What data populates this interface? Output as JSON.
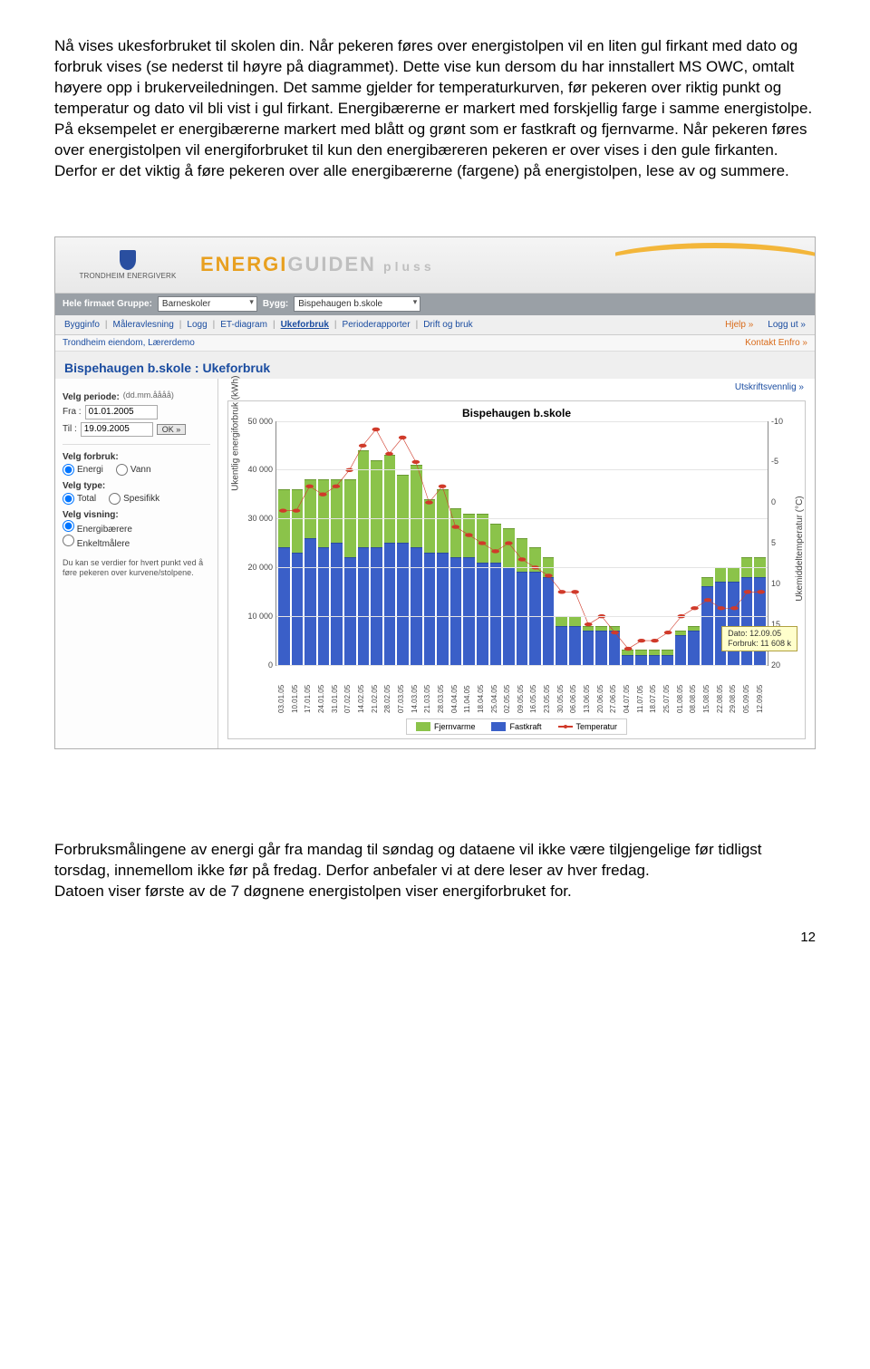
{
  "doc": {
    "para1": "Nå vises ukesforbruket til skolen din. Når pekeren føres over energistolpen vil en liten gul firkant med dato og forbruk vises (se nederst til høyre på diagrammet). Dette vise kun dersom du har innstallert MS OWC, omtalt høyere opp i brukerveiledningen. Det samme gjelder for temperaturkurven, før pekeren over riktig punkt og temperatur og dato vil bli vist i gul firkant. Energibærerne er markert med forskjellig farge i samme energistolpe. På eksempelet er energibærerne markert med blått og grønt som er fastkraft og fjernvarme. Når pekeren føres over energistolpen vil energiforbruket til kun den energibæreren pekeren er over vises i den gule firkanten. Derfor er det viktig å føre pekeren over alle energibærerne (fargene) på energistolpen, lese av og summere.",
    "para2": "Forbruksmålingene av energi går fra mandag til søndag og dataene vil ikke være tilgjengelige før tidligst torsdag, innemellom ikke før på fredag. Derfor anbefaler vi at dere leser av hver fredag.\nDatoen viser første av de 7 døgnene energistolpen viser energiforbruket for.",
    "pagenum": "12"
  },
  "hdr": {
    "logotxt": "TRONDHEIM ENERGIVERK",
    "brand_a": "ENERGI",
    "brand_b": "GUIDEN",
    "brand_c": "pluss"
  },
  "nav1": {
    "label1": "Hele firmaet  Gruppe:",
    "dd1": "Barneskoler",
    "label2": "Bygg:",
    "dd2": "Bispehaugen b.skole"
  },
  "tabs": {
    "items": [
      "Bygginfo",
      "Måleravlesning",
      "Logg",
      "ET-diagram",
      "Ukeforbruk",
      "Perioderapporter",
      "Drift og bruk"
    ],
    "active_index": 4,
    "help": "Hjelp »",
    "logout": "Logg ut »"
  },
  "subrow": {
    "left": "Trondheim eiendom,  Lærerdemo",
    "right": "Kontakt Enfro »"
  },
  "page": {
    "title": "Bispehaugen b.skole : Ukeforbruk",
    "print": "Utskriftsvennlig »"
  },
  "side": {
    "period_label": "Velg periode:",
    "period_hint": "(dd.mm.åååå)",
    "fra_lbl": "Fra :",
    "fra_val": "01.01.2005",
    "til_lbl": "Til :",
    "til_val": "19.09.2005",
    "ok": "OK »",
    "forbruk_lbl": "Velg forbruk:",
    "forbruk_a": "Energi",
    "forbruk_b": "Vann",
    "type_lbl": "Velg type:",
    "type_a": "Total",
    "type_b": "Spesifikk",
    "visning_lbl": "Velg visning:",
    "visning_a": "Energibærere",
    "visning_b": "Enkeltmålere",
    "note": "Du kan se verdier for hvert punkt ved å føre pekeren over kurvene/stolpene."
  },
  "chart": {
    "type": "stacked-bar-with-line",
    "title": "Bispehaugen b.skole",
    "ylabel_left": "Ukentlig energiforbruk (kWh)",
    "ylabel_right": "Ukemiddeltemperatur (°C)",
    "ylim_left": [
      0,
      50000
    ],
    "ytick_left_step": 10000,
    "ylim_right": [
      20,
      -10
    ],
    "ytick_right_values": [
      -10,
      -5,
      0,
      5,
      10,
      15,
      20
    ],
    "background_color": "#ffffff",
    "grid_color": "#e4e4e4",
    "bar_blue": "#3a5fc8",
    "bar_green": "#8bc34a",
    "line_color": "#d03a2a",
    "categories": [
      "03.01.05",
      "10.01.05",
      "17.01.05",
      "24.01.05",
      "31.01.05",
      "07.02.05",
      "14.02.05",
      "21.02.05",
      "28.02.05",
      "07.03.05",
      "14.03.05",
      "21.03.05",
      "28.03.05",
      "04.04.05",
      "11.04.05",
      "18.04.05",
      "25.04.05",
      "02.05.05",
      "09.05.05",
      "16.05.05",
      "23.05.05",
      "30.05.05",
      "06.06.05",
      "13.06.05",
      "20.06.05",
      "27.06.05",
      "04.07.05",
      "11.07.05",
      "18.07.05",
      "25.07.05",
      "01.08.05",
      "08.08.05",
      "15.08.05",
      "22.08.05",
      "29.08.05",
      "05.09.05",
      "12.09.05"
    ],
    "fastkraft": [
      24000,
      23000,
      26000,
      24000,
      25000,
      22000,
      24000,
      24000,
      25000,
      25000,
      24000,
      23000,
      23000,
      22000,
      22000,
      21000,
      21000,
      20000,
      19000,
      19000,
      18000,
      8000,
      8000,
      7000,
      7000,
      7000,
      2000,
      2000,
      2000,
      2000,
      6000,
      7000,
      16000,
      17000,
      17000,
      18000,
      18000
    ],
    "fjernvarme": [
      12000,
      13000,
      12000,
      14000,
      13000,
      16000,
      20000,
      18000,
      18000,
      14000,
      17000,
      11000,
      13000,
      10000,
      9000,
      10000,
      8000,
      8000,
      7000,
      5000,
      4000,
      2000,
      2000,
      1000,
      1000,
      1000,
      1000,
      1000,
      1000,
      1000,
      1000,
      1000,
      2000,
      3000,
      3000,
      4000,
      4000
    ],
    "temperatur": [
      1,
      1,
      -2,
      -1,
      -2,
      -4,
      -7,
      -9,
      -6,
      -8,
      -5,
      0,
      -2,
      3,
      4,
      5,
      6,
      5,
      7,
      8,
      9,
      11,
      11,
      15,
      14,
      16,
      18,
      17,
      17,
      16,
      14,
      13,
      12,
      13,
      13,
      11,
      11
    ],
    "legend": {
      "a": "Fjernvarme",
      "b": "Fastkraft",
      "c": "Temperatur"
    },
    "tooltip": {
      "line1": "Dato: 12.09.05",
      "line2": "Forbruk: 11 608 k"
    }
  }
}
